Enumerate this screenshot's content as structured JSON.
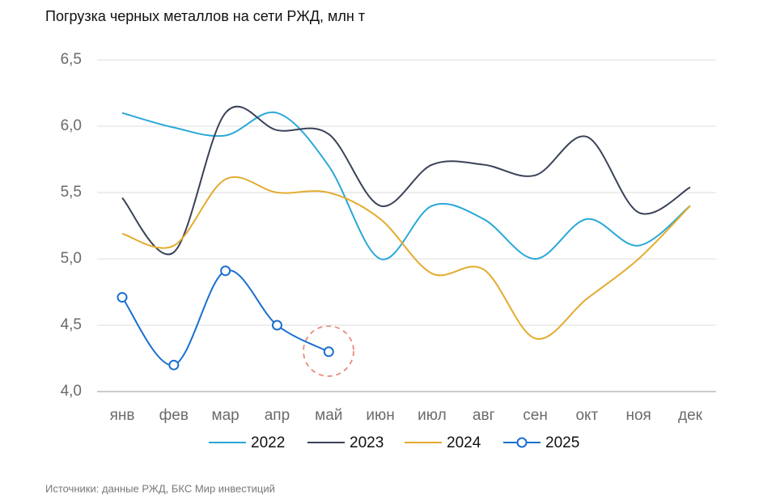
{
  "chart_data": {
    "type": "line",
    "title": "Погрузка черных металлов на сети РЖД, млн т",
    "source": "Источники: данные РЖД, БКС Мир инвестиций",
    "categories": [
      "янв",
      "фев",
      "мар",
      "апр",
      "май",
      "июн",
      "июл",
      "авг",
      "сен",
      "окт",
      "ноя",
      "дек"
    ],
    "series": [
      {
        "name": "2022",
        "color": "#29a8d8",
        "values": [
          6.1,
          5.99,
          5.93,
          6.1,
          5.7,
          5.0,
          5.4,
          5.3,
          5.0,
          5.3,
          5.1,
          5.4
        ]
      },
      {
        "name": "2023",
        "color": "#3a4258",
        "values": [
          5.46,
          5.05,
          6.1,
          5.97,
          5.94,
          5.4,
          5.71,
          5.71,
          5.63,
          5.92,
          5.35,
          5.54
        ]
      },
      {
        "name": "2024",
        "color": "#e3ac2f",
        "values": [
          5.19,
          5.1,
          5.6,
          5.5,
          5.5,
          5.3,
          4.89,
          4.92,
          4.4,
          4.7,
          5.0,
          5.4
        ]
      },
      {
        "name": "2025",
        "color": "#1a6fd0",
        "markers": true,
        "values": [
          4.71,
          4.2,
          4.91,
          4.5,
          4.3,
          null,
          null,
          null,
          null,
          null,
          null,
          null
        ]
      }
    ],
    "ylim": [
      4.0,
      6.5
    ],
    "yticks": [
      {
        "value": 4.0,
        "label": "4,0"
      },
      {
        "value": 4.5,
        "label": "4,5"
      },
      {
        "value": 5.0,
        "label": "5,0"
      },
      {
        "value": 5.5,
        "label": "5,5"
      },
      {
        "value": 6.0,
        "label": "6,0"
      },
      {
        "value": 6.5,
        "label": "6,5"
      }
    ],
    "grid": true,
    "legend": "bottom"
  }
}
